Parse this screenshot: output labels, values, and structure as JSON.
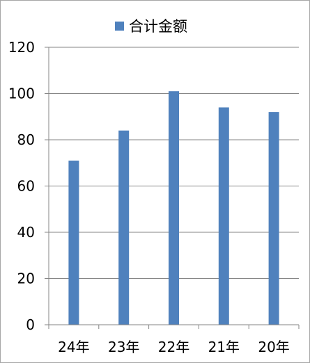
{
  "chart_data": {
    "type": "bar",
    "categories": [
      "24年",
      "23年",
      "22年",
      "21年",
      "20年"
    ],
    "series": [
      {
        "name": "合计金额",
        "values": [
          71,
          84,
          101,
          94,
          92
        ],
        "color": "#4f81bd"
      }
    ],
    "title": "",
    "xlabel": "",
    "ylabel": "",
    "ylim": [
      0,
      120
    ],
    "yticks": [
      0,
      20,
      40,
      60,
      80,
      100,
      120
    ],
    "ytick_labels": [
      "0",
      "20",
      "40",
      "60",
      "80",
      "100",
      "120"
    ],
    "grid": true,
    "gridline_color": "#868686",
    "legend": "top"
  }
}
